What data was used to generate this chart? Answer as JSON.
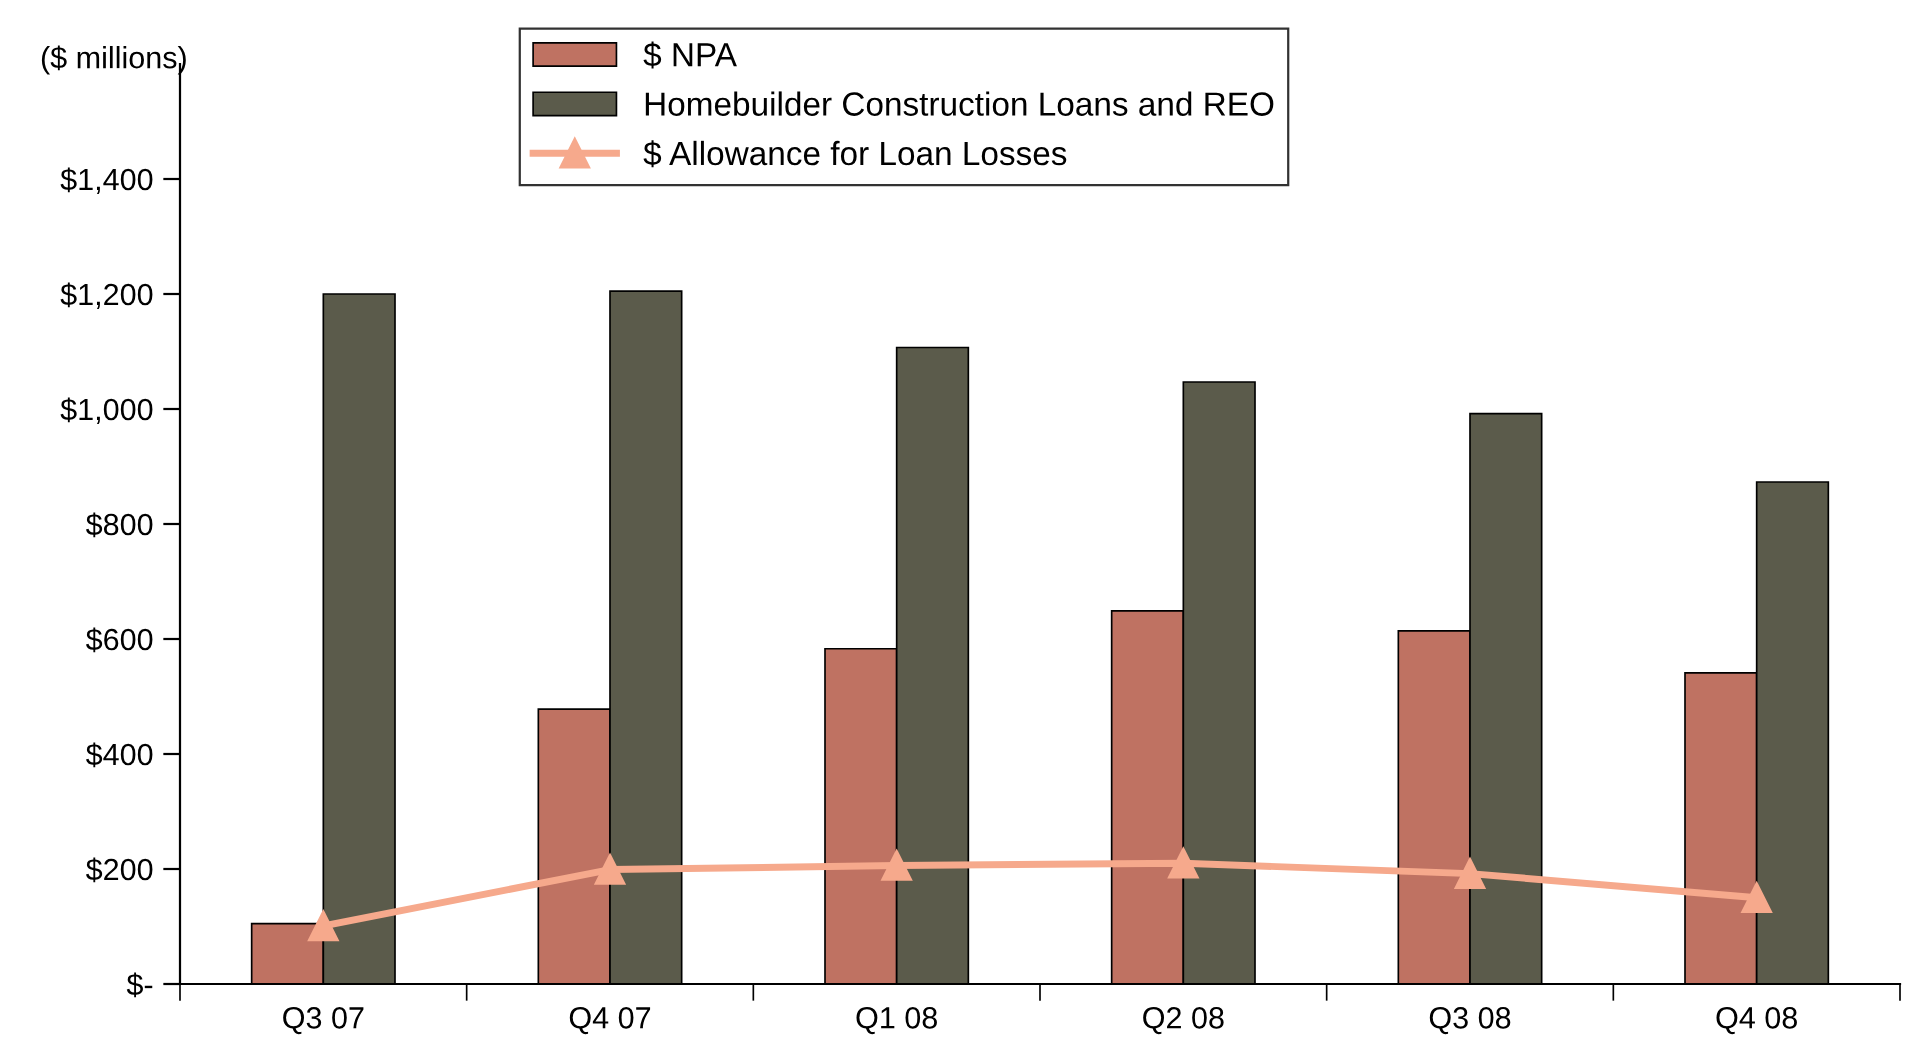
{
  "chart_data": {
    "type": "bar",
    "ylabel": "($ millions)",
    "categories": [
      "Q3 07",
      "Q4 07",
      "Q1 08",
      "Q2 08",
      "Q3 08",
      "Q4 08"
    ],
    "series": [
      {
        "name": "$ NPA",
        "color": "#bf7262",
        "values": [
          105,
          478,
          583,
          649,
          614,
          541
        ]
      },
      {
        "name": "Homebuilder Construction Loans and REO",
        "color": "#5b5b4b",
        "values": [
          1200,
          1205,
          1107,
          1047,
          992,
          873
        ]
      },
      {
        "name": "$ Allowance for Loan Losses",
        "type": "line",
        "color": "#f6a98c",
        "marker": "triangle",
        "values": [
          101,
          199,
          206,
          210,
          192,
          150
        ]
      }
    ],
    "ylim": [
      0,
      1600
    ],
    "yticks": [
      {
        "value": 0,
        "label": "$-"
      },
      {
        "value": 200,
        "label": "$200"
      },
      {
        "value": 400,
        "label": "$400"
      },
      {
        "value": 600,
        "label": "$600"
      },
      {
        "value": 800,
        "label": "$800"
      },
      {
        "value": 1000,
        "label": "$1,000"
      },
      {
        "value": 1200,
        "label": "$1,200"
      },
      {
        "value": 1400,
        "label": "$1,400"
      }
    ],
    "grid": false,
    "legend": "top"
  }
}
